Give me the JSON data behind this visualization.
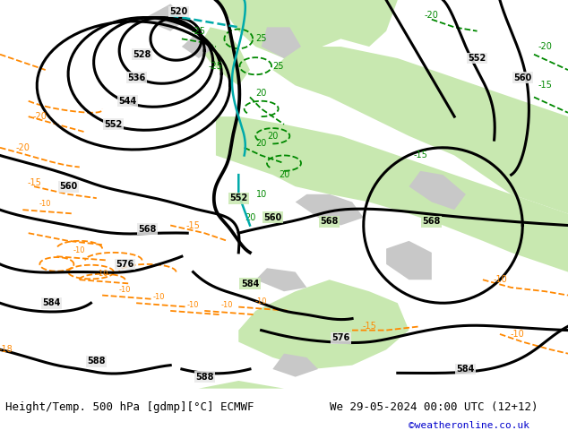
{
  "title_left": "Height/Temp. 500 hPa [gdmp][°C] ECMWF",
  "title_right": "We 29-05-2024 00:00 UTC (12+12)",
  "watermark": "©weatheronline.co.uk",
  "fig_width": 6.34,
  "fig_height": 4.9,
  "dpi": 100,
  "land_green_color": "#c8e8b0",
  "land_gray_color": "#c8c8c8",
  "sea_color": "#e8e8e8",
  "bottom_bar_color": "#ffffff",
  "text_color": "#000000",
  "watermark_color": "#0000cc",
  "font_size_bottom": 9,
  "font_size_watermark": 8,
  "black_lw": 2.2,
  "orange_lw": 1.3,
  "green_lw": 1.3,
  "cyan_lw": 1.8,
  "black_color": "#000000",
  "orange_color": "#ff8800",
  "green_color": "#008800",
  "cyan_color": "#00aaaa"
}
